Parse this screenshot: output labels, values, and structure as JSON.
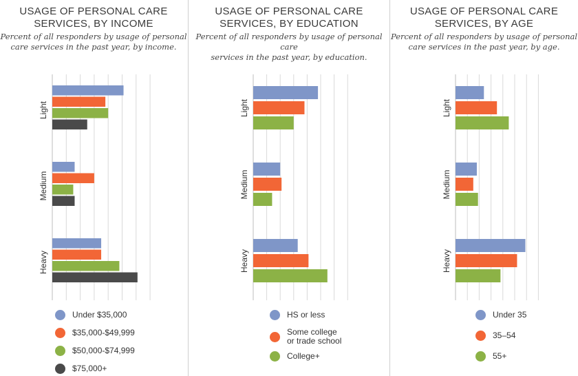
{
  "chart_data": [
    {
      "type": "bar",
      "orientation": "horizontal",
      "title": "USAGE OF PERSONAL CARE SERVICES, BY INCOME",
      "title_lines": [
        "USAGE OF PERSONAL CARE",
        "SERVICES, BY INCOME"
      ],
      "subtitle_lines": [
        "Percent of all responders by usage of personal",
        "care services in the past year, by income."
      ],
      "categories": [
        "Light",
        "Medium",
        "Heavy"
      ],
      "series": [
        {
          "name": "Under $35,000",
          "color": "#7f96c8",
          "values": [
            51,
            16,
            35
          ]
        },
        {
          "name": "$35,000-$49,999",
          "color": "#f26636",
          "values": [
            38,
            30,
            35
          ]
        },
        {
          "name": "$50,000-$74,999",
          "color": "#8cb246",
          "values": [
            40,
            15,
            48
          ]
        },
        {
          "name": "$75,000+",
          "color": "#4a4a4a",
          "values": [
            25,
            16,
            61
          ]
        }
      ],
      "xlim": [
        0,
        70
      ],
      "grid": true,
      "xlabel": "",
      "ylabel": ""
    },
    {
      "type": "bar",
      "orientation": "horizontal",
      "title": "USAGE OF PERSONAL CARE SERVICES, BY EDUCATION",
      "title_lines": [
        "USAGE OF PERSONAL CARE",
        "SERVICES, BY EDUCATION"
      ],
      "subtitle_lines": [
        "Percent of all responders by usage of personal care",
        "services in the past year, by education."
      ],
      "categories": [
        "Light",
        "Medium",
        "Heavy"
      ],
      "series": [
        {
          "name": "HS or less",
          "color": "#7f96c8",
          "values": [
            48,
            20,
            33
          ]
        },
        {
          "name": "Some college\nor trade school",
          "color": "#f26636",
          "values": [
            38,
            21,
            41
          ]
        },
        {
          "name": "College+",
          "color": "#8cb246",
          "values": [
            30,
            14,
            55
          ]
        }
      ],
      "xlim": [
        0,
        70
      ],
      "grid": true,
      "xlabel": "",
      "ylabel": ""
    },
    {
      "type": "bar",
      "orientation": "horizontal",
      "title": "USAGE OF PERSONAL CARE SERVICES, BY AGE",
      "title_lines": [
        "USAGE OF PERSONAL CARE",
        "SERVICES, BY AGE"
      ],
      "subtitle_lines": [
        "Percent of all responders by usage of personal",
        "care services in the past year, by age."
      ],
      "categories": [
        "Light",
        "Medium",
        "Heavy"
      ],
      "series": [
        {
          "name": "Under 35",
          "color": "#7f96c8",
          "values": [
            24,
            18,
            59
          ]
        },
        {
          "name": "35–54",
          "color": "#f26636",
          "values": [
            35,
            15,
            52
          ]
        },
        {
          "name": "55+",
          "color": "#8cb246",
          "values": [
            45,
            19,
            38
          ]
        }
      ],
      "xlim": [
        0,
        70
      ],
      "grid": true,
      "xlabel": "",
      "ylabel": ""
    }
  ]
}
